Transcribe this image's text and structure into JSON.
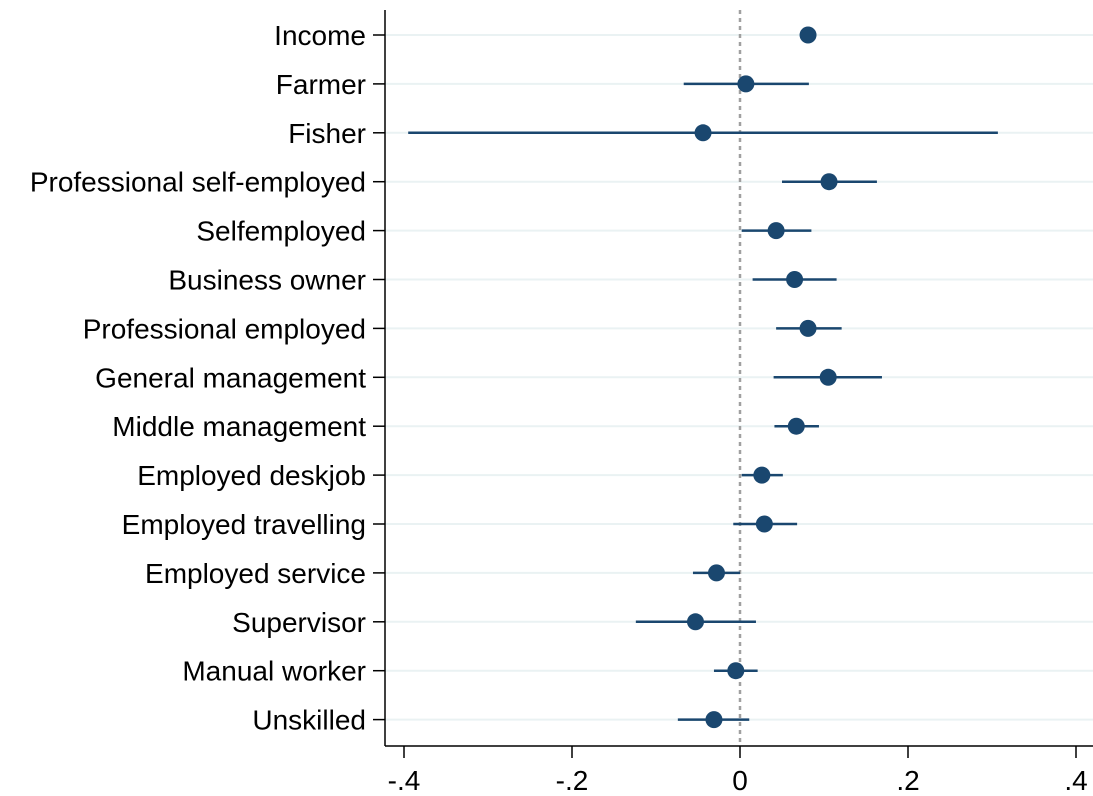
{
  "chart_data": {
    "type": "scatter",
    "orientation": "horizontal",
    "title": "",
    "xlabel": "",
    "ylabel": "",
    "xlim": [
      -0.4,
      0.4
    ],
    "x_ticks": [
      -0.4,
      -0.2,
      0,
      0.2,
      0.4
    ],
    "x_tick_labels": [
      "-.4",
      "-.2",
      "0",
      ".2",
      ".4"
    ],
    "reference_line": 0,
    "grid": true,
    "legend": "none",
    "categories": [
      "Income",
      "Farmer",
      "Fisher",
      "Professional self-employed",
      "Selfemployed",
      "Business owner",
      "Professional employed",
      "General management",
      "Middle management",
      "Employed deskjob",
      "Employed travelling",
      "Employed service",
      "Supervisor",
      "Manual worker",
      "Unskilled"
    ],
    "series": [
      {
        "estimate": [
          0.081,
          0.007,
          -0.044,
          0.106,
          0.043,
          0.065,
          0.081,
          0.105,
          0.067,
          0.026,
          0.029,
          -0.028,
          -0.053,
          -0.005,
          -0.031
        ],
        "ci_low": [
          0.081,
          -0.067,
          -0.395,
          0.05,
          0.002,
          0.015,
          0.043,
          0.04,
          0.041,
          0.002,
          -0.008,
          -0.056,
          -0.124,
          -0.031,
          -0.074
        ],
        "ci_high": [
          0.081,
          0.082,
          0.307,
          0.163,
          0.085,
          0.115,
          0.121,
          0.169,
          0.094,
          0.051,
          0.068,
          0.0,
          0.019,
          0.021,
          0.011
        ]
      }
    ],
    "colors": {
      "marker": "#1a476f",
      "grid": "#eaf2f3",
      "reference": "#a0a0a0",
      "axis": "#000000"
    }
  }
}
